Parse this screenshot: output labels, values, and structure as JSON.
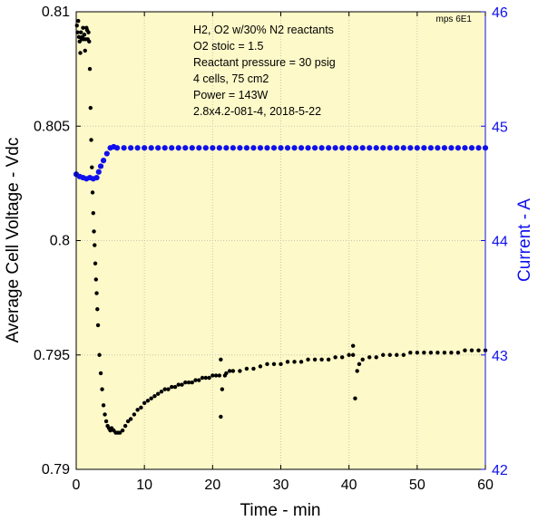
{
  "chart_data": {
    "type": "scatter",
    "corner_label": "mps 6E1",
    "annotations": [
      "H2, O2 w/30% N2 reactants",
      "O2 stoic = 1.5",
      "Reactant pressure = 30 psig",
      "4 cells, 75 cm2",
      "Power = 143W",
      "2.8x4.2-081-4,  2018-5-22"
    ],
    "xlabel": "Time - min",
    "ylabel_left": "Average Cell Voltage - Vdc",
    "ylabel_right": "Current - A",
    "xlim": [
      0,
      60
    ],
    "ylim_left": [
      0.79,
      0.81
    ],
    "ylim_right": [
      42,
      46
    ],
    "x_ticks": [
      "0",
      "10",
      "20",
      "30",
      "40",
      "50",
      "60"
    ],
    "y_left_ticks": [
      "0.79",
      "0.795",
      "0.8",
      "0.805",
      "0.81"
    ],
    "y_right_ticks": [
      "42",
      "43",
      "44",
      "45",
      "46"
    ],
    "grid": true,
    "background_color": "#fdf9c8",
    "series": [
      {
        "axis": "left",
        "color": "#000000",
        "points": [
          [
            0.1,
            0.8094
          ],
          [
            0.2,
            0.8091
          ],
          [
            0.3,
            0.8096
          ],
          [
            0.4,
            0.8089
          ],
          [
            0.5,
            0.8087
          ],
          [
            0.6,
            0.8082
          ],
          [
            0.7,
            0.8091
          ],
          [
            0.8,
            0.8088
          ],
          [
            0.9,
            0.8089
          ],
          [
            1.0,
            0.8093
          ],
          [
            1.1,
            0.8088
          ],
          [
            1.2,
            0.809
          ],
          [
            1.3,
            0.8083
          ],
          [
            1.4,
            0.8088
          ],
          [
            1.5,
            0.8093
          ],
          [
            1.6,
            0.8092
          ],
          [
            1.7,
            0.8088
          ],
          [
            1.8,
            0.8091
          ],
          [
            1.9,
            0.8087
          ],
          [
            2.0,
            0.8075
          ],
          [
            2.1,
            0.8058
          ],
          [
            2.2,
            0.8044
          ],
          [
            2.3,
            0.8032
          ],
          [
            2.4,
            0.8021
          ],
          [
            2.5,
            0.8012
          ],
          [
            2.6,
            0.8004
          ],
          [
            2.7,
            0.7998
          ],
          [
            2.8,
            0.799
          ],
          [
            2.9,
            0.7983
          ],
          [
            3.0,
            0.7977
          ],
          [
            3.1,
            0.797
          ],
          [
            3.2,
            0.7963
          ],
          [
            3.4,
            0.795
          ],
          [
            3.6,
            0.7942
          ],
          [
            3.8,
            0.7935
          ],
          [
            4.0,
            0.7928
          ],
          [
            4.2,
            0.7924
          ],
          [
            4.4,
            0.7921
          ],
          [
            4.6,
            0.7919
          ],
          [
            4.8,
            0.7918
          ],
          [
            5.0,
            0.7917
          ],
          [
            5.2,
            0.7918
          ],
          [
            5.5,
            0.7917
          ],
          [
            5.8,
            0.7916
          ],
          [
            6.1,
            0.7916
          ],
          [
            6.4,
            0.7916
          ],
          [
            6.8,
            0.7917
          ],
          [
            7.2,
            0.7919
          ],
          [
            7.6,
            0.7921
          ],
          [
            8.0,
            0.7922
          ],
          [
            8.5,
            0.7924
          ],
          [
            9.0,
            0.7926
          ],
          [
            9.5,
            0.7927
          ],
          [
            10.0,
            0.7929
          ],
          [
            10.5,
            0.793
          ],
          [
            11.0,
            0.7931
          ],
          [
            11.5,
            0.7932
          ],
          [
            12.0,
            0.7933
          ],
          [
            12.5,
            0.7934
          ],
          [
            13.0,
            0.7935
          ],
          [
            13.5,
            0.7935
          ],
          [
            14.0,
            0.7936
          ],
          [
            14.5,
            0.7936
          ],
          [
            15.0,
            0.7937
          ],
          [
            15.5,
            0.7937
          ],
          [
            16.0,
            0.7938
          ],
          [
            16.5,
            0.7938
          ],
          [
            17.0,
            0.7938
          ],
          [
            17.5,
            0.7939
          ],
          [
            18.0,
            0.7939
          ],
          [
            18.5,
            0.794
          ],
          [
            19.0,
            0.794
          ],
          [
            19.5,
            0.794
          ],
          [
            20.0,
            0.7941
          ],
          [
            20.5,
            0.7941
          ],
          [
            21.0,
            0.7941
          ],
          [
            21.2,
            0.7948
          ],
          [
            21.2,
            0.7923
          ],
          [
            21.4,
            0.7935
          ],
          [
            21.8,
            0.7941
          ],
          [
            22.0,
            0.7942
          ],
          [
            22.5,
            0.7943
          ],
          [
            23.0,
            0.7943
          ],
          [
            24.0,
            0.7943
          ],
          [
            25.0,
            0.7944
          ],
          [
            26.0,
            0.7944
          ],
          [
            27.0,
            0.7945
          ],
          [
            28.0,
            0.7946
          ],
          [
            29.0,
            0.7946
          ],
          [
            30.0,
            0.7946
          ],
          [
            31.0,
            0.7947
          ],
          [
            32.0,
            0.7947
          ],
          [
            33.0,
            0.7947
          ],
          [
            34.0,
            0.7948
          ],
          [
            35.0,
            0.7948
          ],
          [
            36.0,
            0.7948
          ],
          [
            37.0,
            0.7948
          ],
          [
            38.0,
            0.7949
          ],
          [
            39.0,
            0.7949
          ],
          [
            40.0,
            0.795
          ],
          [
            40.6,
            0.795
          ],
          [
            40.6,
            0.7954
          ],
          [
            40.9,
            0.7931
          ],
          [
            41.2,
            0.7943
          ],
          [
            41.5,
            0.7946
          ],
          [
            42.0,
            0.7948
          ],
          [
            43.0,
            0.7949
          ],
          [
            44.0,
            0.7949
          ],
          [
            45.0,
            0.795
          ],
          [
            46.0,
            0.795
          ],
          [
            47.0,
            0.795
          ],
          [
            48.0,
            0.795
          ],
          [
            49.0,
            0.7951
          ],
          [
            50.0,
            0.7951
          ],
          [
            51.0,
            0.7951
          ],
          [
            52.0,
            0.7951
          ],
          [
            53.0,
            0.7951
          ],
          [
            54.0,
            0.7951
          ],
          [
            55.0,
            0.7951
          ],
          [
            56.0,
            0.7951
          ],
          [
            57.0,
            0.7952
          ],
          [
            58.0,
            0.7952
          ],
          [
            59.0,
            0.7952
          ],
          [
            60.0,
            0.7952
          ]
        ]
      },
      {
        "axis": "right",
        "color": "#1010ee",
        "points": [
          [
            0.0,
            44.58
          ],
          [
            0.5,
            44.56
          ],
          [
            1.0,
            44.55
          ],
          [
            1.5,
            44.54
          ],
          [
            2.0,
            44.55
          ],
          [
            2.5,
            44.54
          ],
          [
            3.0,
            44.55
          ],
          [
            3.3,
            44.6
          ],
          [
            3.6,
            44.65
          ],
          [
            4.0,
            44.7
          ],
          [
            4.5,
            44.76
          ],
          [
            5.0,
            44.81
          ],
          [
            5.5,
            44.82
          ],
          [
            6.0,
            44.81
          ],
          [
            7.0,
            44.81
          ],
          [
            8.0,
            44.81
          ],
          [
            9.0,
            44.81
          ],
          [
            10.0,
            44.81
          ],
          [
            11.0,
            44.81
          ],
          [
            12.0,
            44.81
          ],
          [
            13.0,
            44.81
          ],
          [
            14.0,
            44.81
          ],
          [
            15.0,
            44.81
          ],
          [
            16.0,
            44.81
          ],
          [
            17.0,
            44.81
          ],
          [
            18.0,
            44.81
          ],
          [
            19.0,
            44.81
          ],
          [
            20.0,
            44.81
          ],
          [
            21.0,
            44.81
          ],
          [
            22.0,
            44.81
          ],
          [
            23.0,
            44.81
          ],
          [
            24.0,
            44.81
          ],
          [
            25.0,
            44.81
          ],
          [
            26.0,
            44.81
          ],
          [
            27.0,
            44.81
          ],
          [
            28.0,
            44.81
          ],
          [
            29.0,
            44.81
          ],
          [
            30.0,
            44.81
          ],
          [
            31.0,
            44.81
          ],
          [
            32.0,
            44.81
          ],
          [
            33.0,
            44.81
          ],
          [
            34.0,
            44.81
          ],
          [
            35.0,
            44.81
          ],
          [
            36.0,
            44.81
          ],
          [
            37.0,
            44.81
          ],
          [
            38.0,
            44.81
          ],
          [
            39.0,
            44.81
          ],
          [
            40.0,
            44.81
          ],
          [
            41.0,
            44.81
          ],
          [
            42.0,
            44.81
          ],
          [
            43.0,
            44.81
          ],
          [
            44.0,
            44.81
          ],
          [
            45.0,
            44.81
          ],
          [
            46.0,
            44.81
          ],
          [
            47.0,
            44.81
          ],
          [
            48.0,
            44.81
          ],
          [
            49.0,
            44.81
          ],
          [
            50.0,
            44.81
          ],
          [
            51.0,
            44.81
          ],
          [
            52.0,
            44.81
          ],
          [
            53.0,
            44.81
          ],
          [
            54.0,
            44.81
          ],
          [
            55.0,
            44.81
          ],
          [
            56.0,
            44.81
          ],
          [
            57.0,
            44.81
          ],
          [
            58.0,
            44.81
          ],
          [
            59.0,
            44.81
          ],
          [
            60.0,
            44.81
          ]
        ]
      }
    ]
  }
}
